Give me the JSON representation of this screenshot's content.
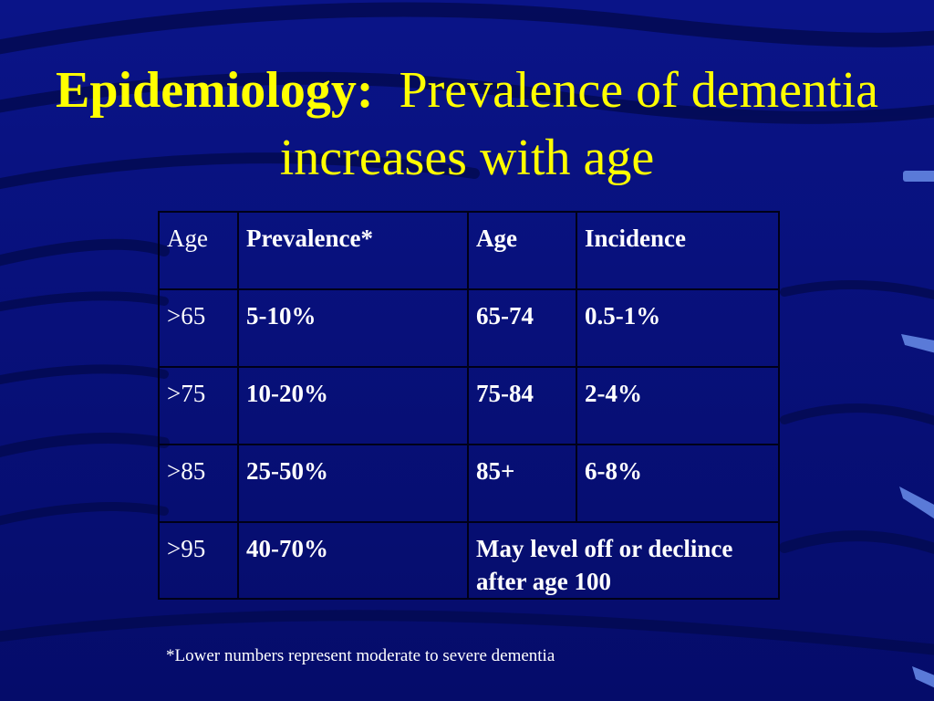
{
  "slide": {
    "title_bold": "Epidemiology:",
    "title_rest": "Prevalence of dementia increases with age"
  },
  "table": {
    "headers": [
      "Age",
      "Prevalence*",
      "Age",
      "Incidence"
    ],
    "rows": [
      [
        ">65",
        "5-10%",
        "65-74",
        "0.5-1%"
      ],
      [
        ">75",
        "10-20%",
        "75-84",
        "2-4%"
      ],
      [
        ">85",
        "25-50%",
        "85+",
        "6-8%"
      ],
      [
        ">95",
        "40-70%",
        "May level off or declince after age 100"
      ]
    ]
  },
  "footnote": "*Lower numbers represent moderate to severe dementia",
  "colors": {
    "background": "#06107a",
    "title": "#ffff00",
    "text": "#ffffff",
    "accent_marks": "#5a7ad8"
  }
}
